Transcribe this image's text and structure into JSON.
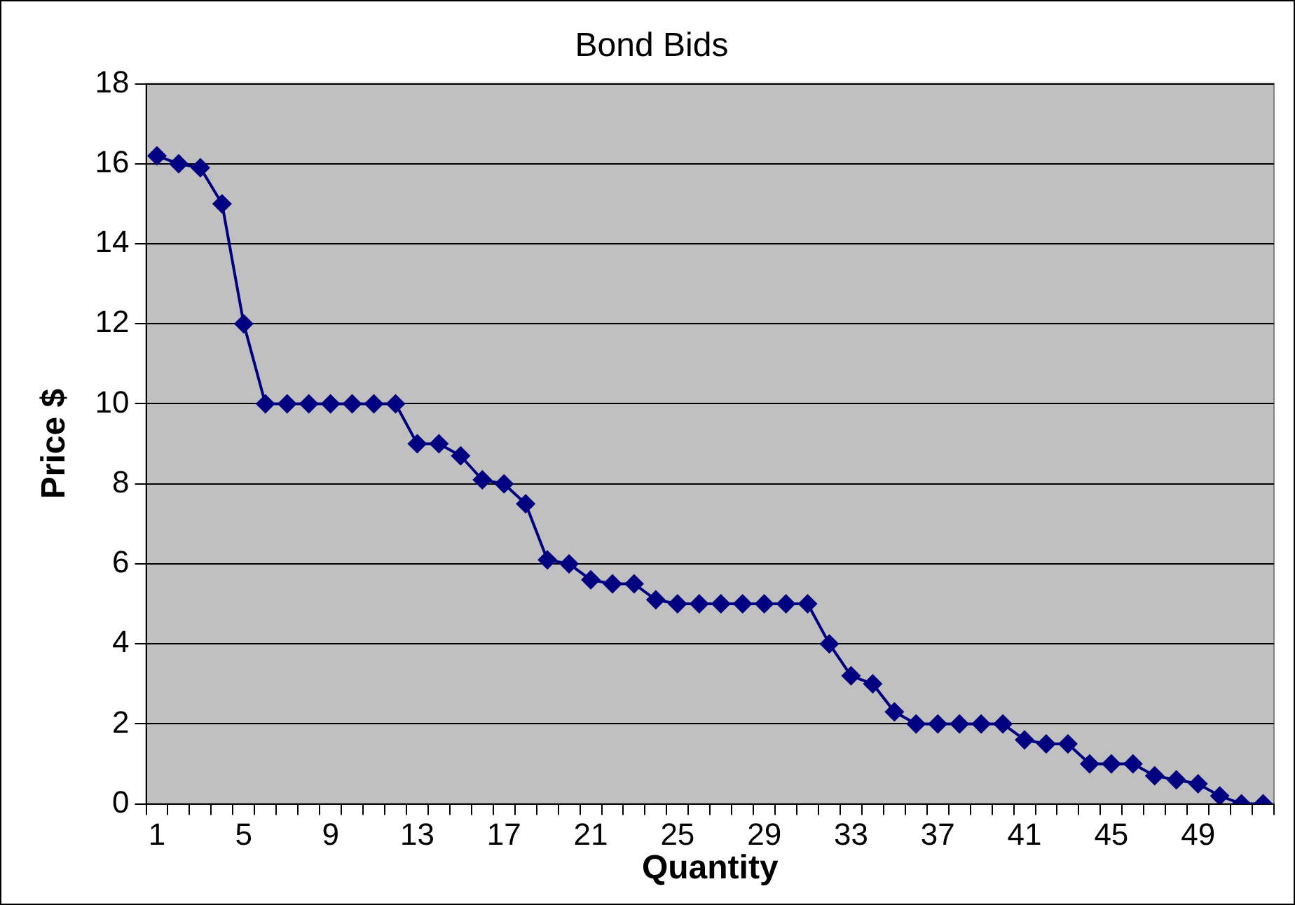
{
  "chart_data": {
    "type": "line",
    "title": "Bond Bids",
    "xlabel": "Quantity",
    "ylabel": "Price $",
    "categories": [
      "1",
      null,
      null,
      null,
      "5",
      null,
      null,
      null,
      "9",
      null,
      null,
      null,
      "13",
      null,
      null,
      null,
      "17",
      null,
      null,
      null,
      "21",
      null,
      null,
      null,
      "25",
      null,
      null,
      null,
      "29",
      null,
      null,
      null,
      "33",
      null,
      null,
      null,
      "37",
      null,
      null,
      null,
      "41",
      null,
      null,
      null,
      "45",
      null,
      null,
      null,
      "49",
      null,
      null,
      null
    ],
    "series": [
      {
        "color": "#000080",
        "values": [
          16.2,
          16,
          15.9,
          15,
          12,
          10,
          10,
          10,
          10,
          10,
          10,
          10,
          9,
          9,
          8.7,
          8.1,
          8,
          7.5,
          6.1,
          6,
          5.6,
          5.5,
          5.5,
          5.1,
          5,
          5,
          5,
          5,
          5,
          5,
          5,
          4,
          3.2,
          3,
          2.3,
          2,
          2,
          2,
          2,
          2,
          1.6,
          1.5,
          1.5,
          1,
          1,
          1,
          0.7,
          0.6,
          0.5,
          0.2,
          0,
          0
        ]
      }
    ],
    "ylim": [
      0,
      18
    ],
    "yticks": [
      0,
      2,
      4,
      6,
      8,
      10,
      12,
      14,
      16,
      18
    ],
    "grid": "y",
    "legend": false,
    "marker": "diamond",
    "line_style": "solid"
  }
}
